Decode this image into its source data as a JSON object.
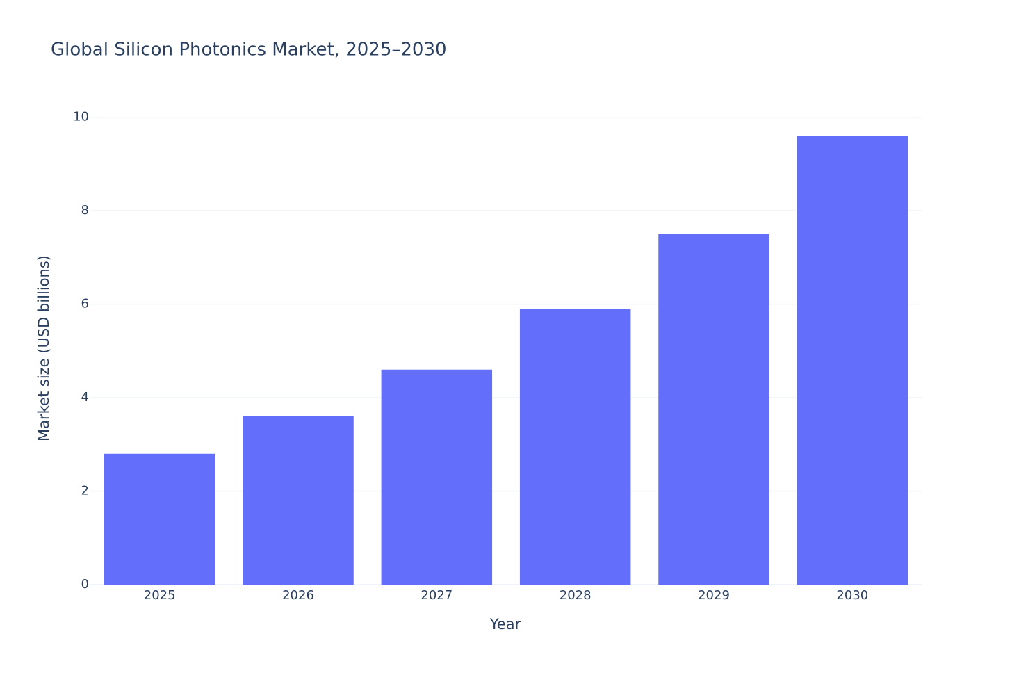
{
  "chart_data": {
    "type": "bar",
    "title": "Global Silicon Photonics Market, 2025–2030",
    "x_label": "Year",
    "y_label": "Market size (USD billions)",
    "categories": [
      "2025",
      "2026",
      "2027",
      "2028",
      "2029",
      "2030"
    ],
    "values": [
      2.8,
      3.6,
      4.6,
      5.9,
      7.5,
      9.6
    ],
    "color": "#636efa",
    "ylim": [
      0,
      10.1
    ],
    "yticks": [
      0,
      2,
      4,
      6,
      8,
      10
    ],
    "grid": true
  }
}
